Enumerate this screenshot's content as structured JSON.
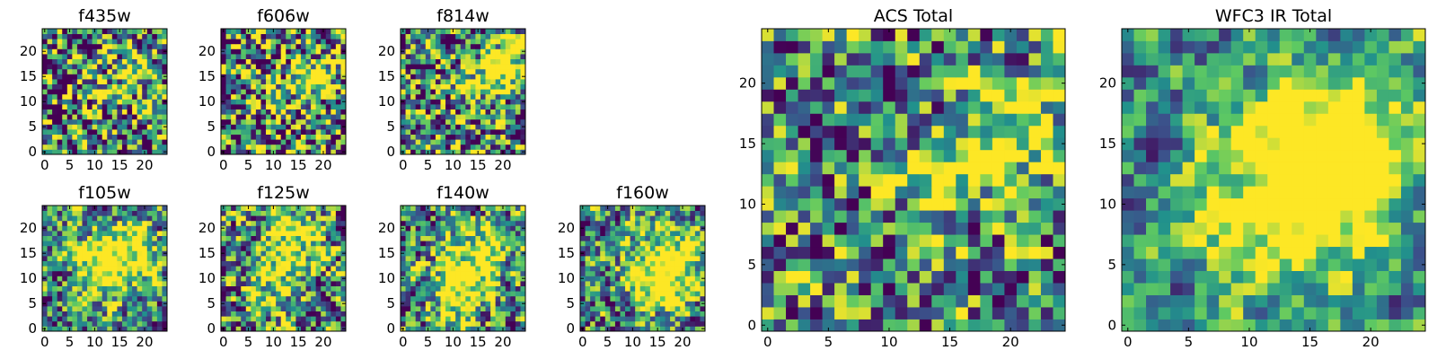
{
  "chart_data": [
    {
      "type": "heatmap",
      "title": "f435w",
      "size": 25,
      "seed": 11,
      "blobs": [
        [
          19,
          16,
          3.5,
          0.55
        ],
        [
          11,
          12,
          3,
          0.35
        ]
      ],
      "noise": 0.55,
      "xticks": [
        "0",
        "5",
        "10",
        "15",
        "20"
      ],
      "xtick_values": [
        0,
        5,
        10,
        15,
        20
      ],
      "yticks": [
        "0",
        "5",
        "10",
        "15",
        "20"
      ],
      "ytick_values": [
        0,
        5,
        10,
        15,
        20
      ]
    },
    {
      "type": "heatmap",
      "title": "f606w",
      "size": 25,
      "seed": 23,
      "blobs": [
        [
          19,
          15,
          3.5,
          0.6
        ],
        [
          11,
          11,
          3,
          0.3
        ]
      ],
      "noise": 0.55,
      "xticks": [
        "0",
        "5",
        "10",
        "15",
        "20"
      ],
      "xtick_values": [
        0,
        5,
        10,
        15,
        20
      ],
      "yticks": [
        "0",
        "5",
        "10",
        "15",
        "20"
      ],
      "ytick_values": [
        0,
        5,
        10,
        15,
        20
      ]
    },
    {
      "type": "heatmap",
      "title": "f814w",
      "size": 25,
      "seed": 37,
      "blobs": [
        [
          20,
          17,
          3.5,
          0.7
        ],
        [
          14,
          12,
          3,
          0.35
        ]
      ],
      "noise": 0.5,
      "xticks": [
        "0",
        "5",
        "10",
        "15",
        "20"
      ],
      "xtick_values": [
        0,
        5,
        10,
        15,
        20
      ],
      "yticks": [
        "0",
        "5",
        "10",
        "15",
        "20"
      ],
      "ytick_values": [
        0,
        5,
        10,
        15,
        20
      ]
    },
    {
      "type": "heatmap",
      "title": "f105w",
      "size": 25,
      "seed": 41,
      "blobs": [
        [
          16,
          15,
          4.5,
          0.65
        ],
        [
          11,
          11,
          4,
          0.4
        ]
      ],
      "noise": 0.4,
      "xticks": [
        "0",
        "5",
        "10",
        "15",
        "20"
      ],
      "xtick_values": [
        0,
        5,
        10,
        15,
        20
      ],
      "yticks": [
        "0",
        "5",
        "10",
        "15",
        "20"
      ],
      "ytick_values": [
        0,
        5,
        10,
        15,
        20
      ]
    },
    {
      "type": "heatmap",
      "title": "f125w",
      "size": 25,
      "seed": 53,
      "blobs": [
        [
          14,
          18,
          4.5,
          0.6
        ],
        [
          10,
          8,
          4,
          0.4
        ]
      ],
      "noise": 0.45,
      "xticks": [
        "0",
        "5",
        "10",
        "15",
        "20"
      ],
      "xtick_values": [
        0,
        5,
        10,
        15,
        20
      ],
      "yticks": [
        "0",
        "5",
        "10",
        "15",
        "20"
      ],
      "ytick_values": [
        0,
        5,
        10,
        15,
        20
      ]
    },
    {
      "type": "heatmap",
      "title": "f140w",
      "size": 25,
      "seed": 67,
      "blobs": [
        [
          15,
          15,
          4.5,
          0.6
        ],
        [
          11,
          6,
          4,
          0.55
        ]
      ],
      "noise": 0.42,
      "xticks": [
        "0",
        "5",
        "10",
        "15",
        "20"
      ],
      "xtick_values": [
        0,
        5,
        10,
        15,
        20
      ],
      "yticks": [
        "0",
        "5",
        "10",
        "15",
        "20"
      ],
      "ytick_values": [
        0,
        5,
        10,
        15,
        20
      ]
    },
    {
      "type": "heatmap",
      "title": "f160w",
      "size": 25,
      "seed": 79,
      "blobs": [
        [
          17,
          13,
          5,
          0.7
        ],
        [
          13,
          8,
          3.5,
          0.4
        ]
      ],
      "noise": 0.4,
      "xticks": [
        "0",
        "5",
        "10",
        "15",
        "20"
      ],
      "xtick_values": [
        0,
        5,
        10,
        15,
        20
      ],
      "yticks": [
        "0",
        "5",
        "10",
        "15",
        "20"
      ],
      "ytick_values": [
        0,
        5,
        10,
        15,
        20
      ]
    },
    {
      "type": "heatmap",
      "title": "ACS Total",
      "size": 25,
      "seed": 97,
      "blobs": [
        [
          20,
          16,
          3.5,
          0.65
        ],
        [
          14,
          12,
          2.5,
          0.45
        ]
      ],
      "noise": 0.45,
      "xticks": [
        "0",
        "5",
        "10",
        "15",
        "20"
      ],
      "xtick_values": [
        0,
        5,
        10,
        15,
        20
      ],
      "yticks": [
        "0",
        "5",
        "10",
        "15",
        "20"
      ],
      "ytick_values": [
        0,
        5,
        10,
        15,
        20
      ]
    },
    {
      "type": "heatmap",
      "title": "WFC3 IR Total",
      "size": 25,
      "seed": 113,
      "blobs": [
        [
          17,
          14,
          5.5,
          0.75
        ],
        [
          12,
          9,
          5,
          0.45
        ]
      ],
      "noise": 0.28,
      "xticks": [
        "0",
        "5",
        "10",
        "15",
        "20"
      ],
      "xtick_values": [
        0,
        5,
        10,
        15,
        20
      ],
      "yticks": [
        "0",
        "5",
        "10",
        "15",
        "20"
      ],
      "ytick_values": [
        0,
        5,
        10,
        15,
        20
      ]
    }
  ],
  "colormap": [
    "#440154",
    "#3b528b",
    "#21918c",
    "#5ec962",
    "#fde725"
  ]
}
